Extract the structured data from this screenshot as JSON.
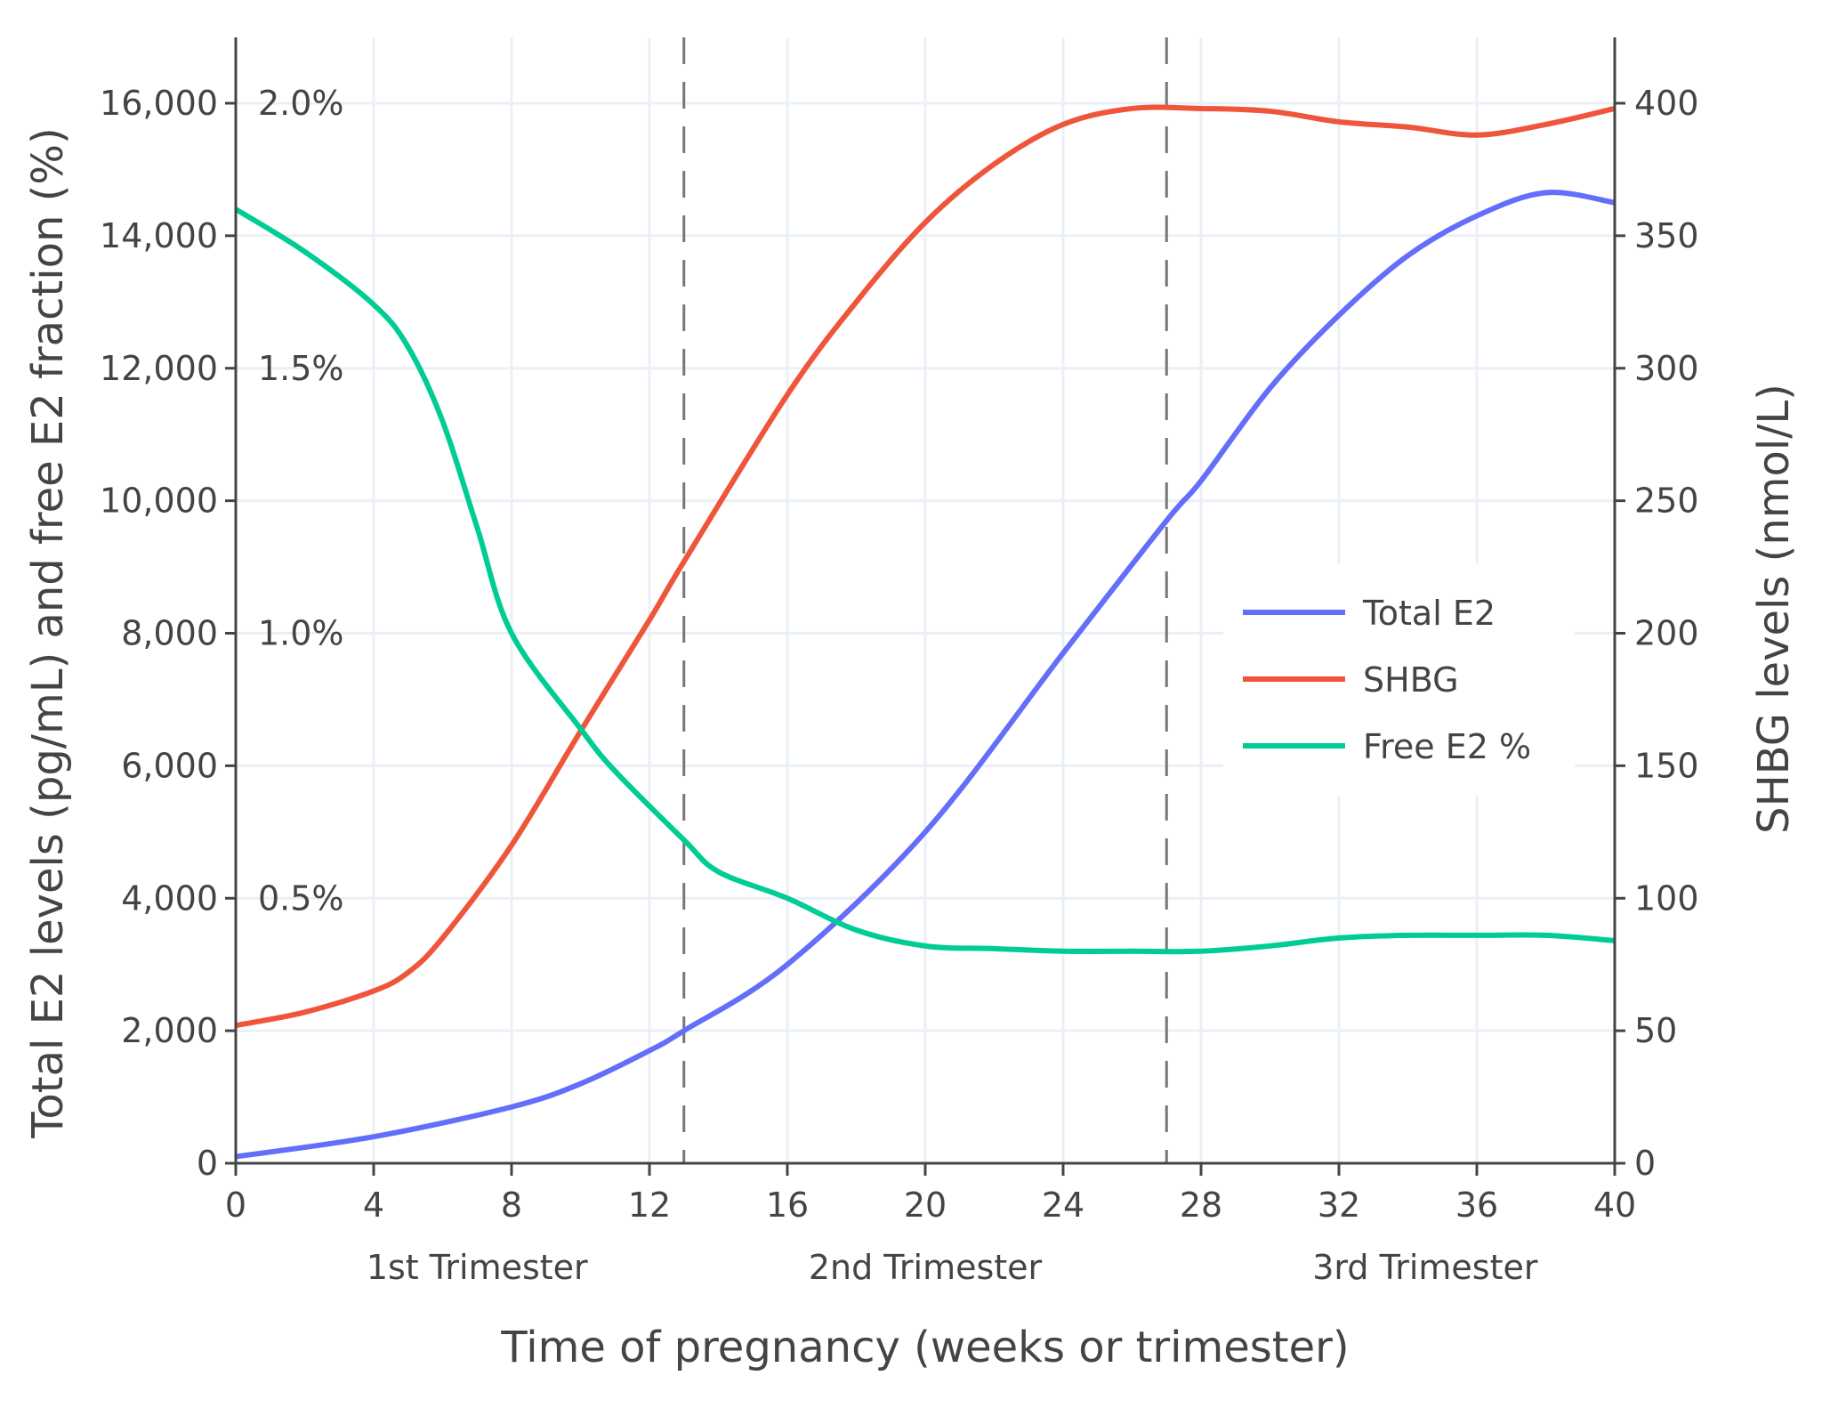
{
  "chart_data": {
    "type": "line",
    "xlabel": "Time of pregnancy (weeks or trimester)",
    "ylabel_left": "Total E2 levels (pg/mL) and free E2 fraction (%)",
    "ylabel_right": "SHBG levels (nmol/L)",
    "xlim": [
      0,
      40
    ],
    "ylim_left": [
      0,
      16800
    ],
    "ylim_right": [
      0,
      420
    ],
    "x_ticks": [
      0,
      4,
      8,
      12,
      16,
      20,
      24,
      28,
      32,
      36,
      40
    ],
    "y_left_ticks": [
      "0",
      "2,000",
      "4,000",
      "6,000",
      "8,000",
      "10,000",
      "12,000",
      "14,000",
      "16,000"
    ],
    "y_left_tick_values": [
      0,
      2000,
      4000,
      6000,
      8000,
      10000,
      12000,
      14000,
      16000
    ],
    "y_percent_ticks": [
      "0.5%",
      "1.0%",
      "1.5%",
      "2.0%"
    ],
    "y_percent_values": [
      0.5,
      1.0,
      1.5,
      2.0
    ],
    "y_right_ticks": [
      "0",
      "50",
      "100",
      "150",
      "200",
      "250",
      "300",
      "350",
      "400"
    ],
    "y_right_tick_values": [
      0,
      50,
      100,
      150,
      200,
      250,
      300,
      350,
      400
    ],
    "trimester_labels": [
      {
        "label": "1st Trimester",
        "x": 7
      },
      {
        "label": "2nd Trimester",
        "x": 20
      },
      {
        "label": "3rd Trimester",
        "x": 34.5
      }
    ],
    "dashed_lines_x": [
      13,
      27
    ],
    "grid": true,
    "legend_position": "right-center",
    "series": [
      {
        "name": "Total E2",
        "color": "#636efa",
        "axis": "left",
        "x": [
          0,
          4,
          8,
          10,
          12,
          13,
          16,
          20,
          24,
          27,
          28,
          30,
          32,
          34,
          36,
          38,
          40
        ],
        "y": [
          100,
          400,
          850,
          1200,
          1700,
          2000,
          3000,
          5000,
          7700,
          9700,
          10300,
          11700,
          12800,
          13700,
          14300,
          14650,
          14500
        ]
      },
      {
        "name": "SHBG",
        "color": "#ef553b",
        "axis": "right",
        "x": [
          0,
          2,
          4,
          5,
          6,
          8,
          10,
          12,
          13,
          16,
          18,
          20,
          22,
          24,
          26,
          28,
          30,
          32,
          34,
          36,
          38,
          40
        ],
        "y": [
          52,
          57,
          65,
          72,
          85,
          120,
          163,
          205,
          227,
          290,
          325,
          355,
          377,
          392,
          398,
          398,
          397,
          393,
          391,
          388,
          392,
          398
        ]
      },
      {
        "name": "Free E2 %",
        "color": "#00cc96",
        "axis": "percent",
        "x": [
          0,
          2,
          4,
          5,
          6,
          7,
          8,
          10,
          11,
          13,
          14,
          16,
          18,
          20,
          22,
          24,
          26,
          28,
          30,
          32,
          34,
          36,
          38,
          40
        ],
        "y": [
          1.8,
          1.72,
          1.62,
          1.54,
          1.4,
          1.2,
          1.0,
          0.82,
          0.74,
          0.61,
          0.55,
          0.5,
          0.44,
          0.41,
          0.405,
          0.4,
          0.4,
          0.4,
          0.41,
          0.425,
          0.43,
          0.43,
          0.43,
          0.42
        ]
      }
    ]
  }
}
